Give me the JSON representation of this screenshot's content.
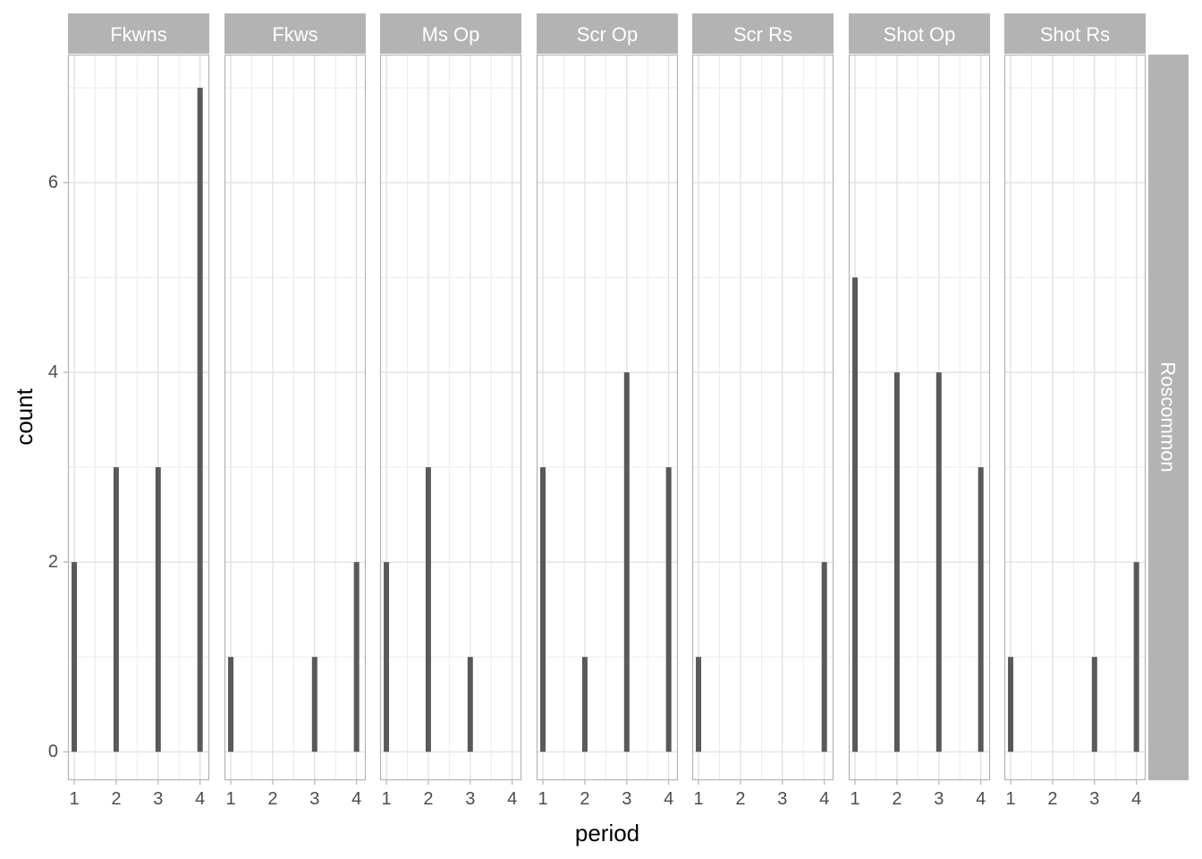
{
  "chart_data": {
    "type": "bar",
    "xlabel": "period",
    "ylabel": "count",
    "row_strip": "Roscommon",
    "x_categories": [
      "1",
      "2",
      "3",
      "4"
    ],
    "x_tick_values": [
      1,
      2,
      3,
      4
    ],
    "y_ticks": [
      0,
      2,
      4,
      6
    ],
    "ylim": [
      -0.3,
      7.35
    ],
    "xlim": [
      0.85,
      4.22
    ],
    "grid": true,
    "bar_color": "#595959",
    "strip_color": "#b3b3b3",
    "panels": [
      {
        "name": "Fkwns",
        "values": [
          2,
          3,
          3,
          7
        ]
      },
      {
        "name": "Fkws",
        "values": [
          1,
          0,
          1,
          2
        ]
      },
      {
        "name": "Ms Op",
        "values": [
          2,
          3,
          1,
          0
        ]
      },
      {
        "name": "Scr Op",
        "values": [
          3,
          1,
          4,
          3
        ]
      },
      {
        "name": "Scr Rs",
        "values": [
          1,
          0,
          0,
          2
        ]
      },
      {
        "name": "Shot Op",
        "values": [
          5,
          4,
          4,
          3
        ]
      },
      {
        "name": "Shot Rs",
        "values": [
          1,
          0,
          1,
          2
        ]
      }
    ]
  }
}
